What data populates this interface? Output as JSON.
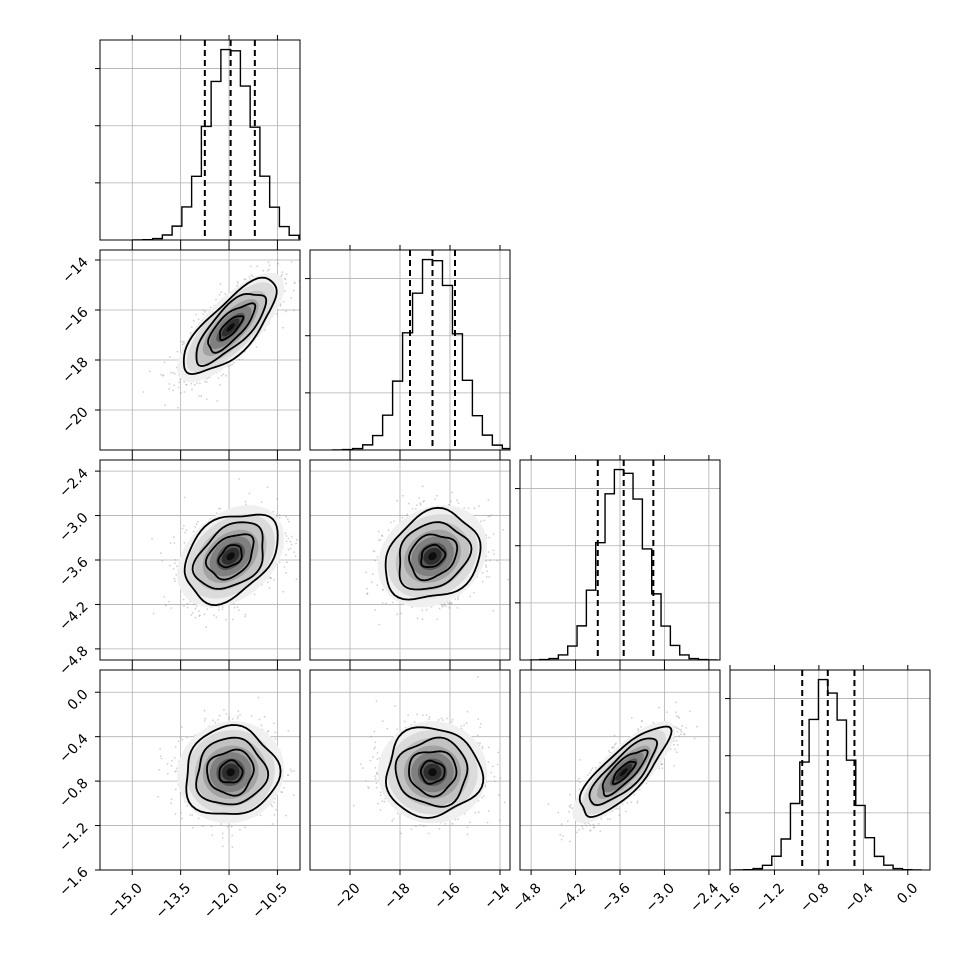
{
  "chart_data": {
    "type": "corner",
    "grid": true,
    "parameters": [
      {
        "range": [
          -16.0,
          -9.8
        ],
        "ticks": [
          -15.0,
          -13.5,
          -12.0,
          -10.5
        ],
        "tick_labels": [
          "−15.0",
          "−13.5",
          "−12.0",
          "−10.5"
        ],
        "mean": -11.95,
        "sd": 0.72,
        "quantiles": [
          -12.75,
          -11.95,
          -11.2
        ]
      },
      {
        "range": [
          -21.6,
          -13.6
        ],
        "ticks": [
          -20,
          -18,
          -16,
          -14
        ],
        "tick_labels": [
          "−20",
          "−18",
          "−16",
          "−14"
        ],
        "mean": -16.7,
        "sd": 0.95,
        "quantiles": [
          -17.6,
          -16.7,
          -15.8
        ]
      },
      {
        "range": [
          -4.95,
          -2.25
        ],
        "ticks": [
          -4.8,
          -4.2,
          -3.6,
          -3.0,
          -2.4
        ],
        "tick_labels": [
          "−4.8",
          "−4.2",
          "−3.6",
          "−3.0",
          "−2.4"
        ],
        "mean": -3.55,
        "sd": 0.3,
        "quantiles": [
          -3.9,
          -3.55,
          -3.15
        ]
      },
      {
        "range": [
          -1.6,
          0.2
        ],
        "ticks": [
          -1.6,
          -1.2,
          -0.8,
          -0.4,
          0.0
        ],
        "tick_labels": [
          "−1.6",
          "−1.2",
          "−0.8",
          "−0.4",
          "0.0"
        ],
        "mean": -0.72,
        "sd": 0.2,
        "quantiles": [
          -0.95,
          -0.72,
          -0.48
        ]
      }
    ],
    "correlations": {
      "1-0": 0.75,
      "2-0": 0.35,
      "2-1": 0.2,
      "3-0": 0.05,
      "3-1": 0.0,
      "3-2": 0.8
    },
    "histogram_bins": 20,
    "quantiles_shown": [
      0.16,
      0.5,
      0.84
    ],
    "contour_levels": [
      0.5,
      1.0,
      1.5,
      2.0
    ]
  }
}
